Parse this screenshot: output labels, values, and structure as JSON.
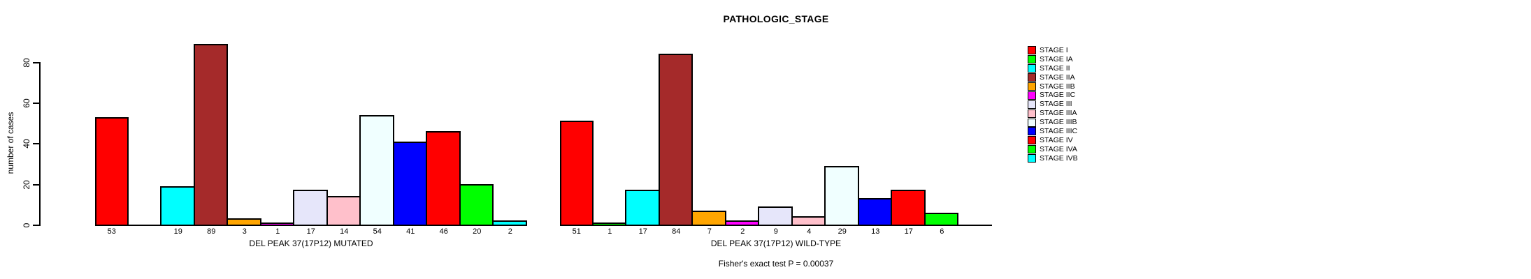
{
  "chart_data": {
    "type": "bar",
    "title": "PATHOLOGIC_STAGE",
    "ylabel": "number of cases",
    "ylim": [
      0,
      89
    ],
    "y_ticks": [
      0,
      20,
      40,
      60,
      80
    ],
    "grid": false,
    "legend_position": "right",
    "categories": [
      "STAGE I",
      "STAGE IA",
      "STAGE II",
      "STAGE IIA",
      "STAGE IIB",
      "STAGE IIC",
      "STAGE III",
      "STAGE IIIA",
      "STAGE IIIB",
      "STAGE IIIC",
      "STAGE IV",
      "STAGE IVA",
      "STAGE IVB"
    ],
    "colors": [
      "#FF0000",
      "#00FF00",
      "#00FFFF",
      "#A52A2A",
      "#FFA500",
      "#FF00FF",
      "#E6E6FA",
      "#FFC0CB",
      "#F0FFFF",
      "#0000FF",
      "#FF0000",
      "#00FF00",
      "#00FFFF"
    ],
    "series": [
      {
        "name": "DEL PEAK 37(17P12) MUTATED",
        "values": [
          53,
          0,
          19,
          89,
          3,
          1,
          17,
          14,
          54,
          41,
          46,
          20,
          2
        ]
      },
      {
        "name": "DEL PEAK 37(17P12) WILD-TYPE",
        "values": [
          51,
          1,
          17,
          84,
          7,
          2,
          9,
          4,
          29,
          13,
          17,
          6,
          0
        ]
      }
    ],
    "bar_label_rule": "value shown under each bar; zero-count categories drawn as flat baseline with no label",
    "annotation": "Fisher's exact test P = 0.00037"
  }
}
